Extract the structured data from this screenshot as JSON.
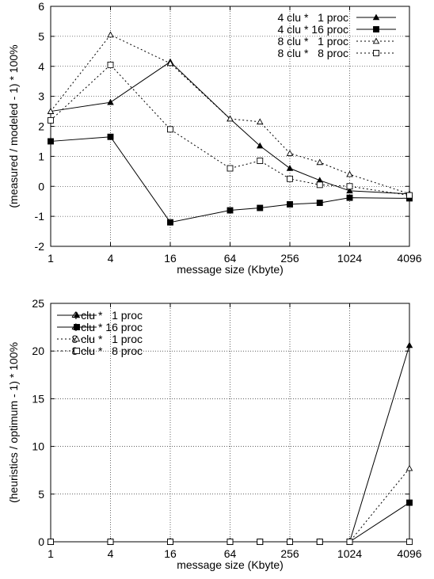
{
  "chart_data": [
    {
      "type": "line",
      "title": "",
      "xlabel": "message size (Kbyte)",
      "ylabel": "(measured / modeled - 1) * 100%",
      "xscale": "log2",
      "xlim": [
        1,
        4096
      ],
      "ylim": [
        -2,
        6
      ],
      "x_ticks": [
        "1",
        "4",
        "16",
        "64",
        "256",
        "1024",
        "4096"
      ],
      "y_ticks": [
        "-2",
        "-1",
        "0",
        "1",
        "2",
        "3",
        "4",
        "5",
        "6"
      ],
      "grid": true,
      "legend": "top-right",
      "x": [
        1,
        4,
        16,
        64,
        128,
        256,
        512,
        1024,
        4096
      ],
      "series": [
        {
          "name": "4 clu *   1 proc",
          "line": "solid",
          "marker": "filled-triangle",
          "values": [
            2.5,
            2.8,
            4.15,
            2.25,
            1.35,
            0.6,
            0.2,
            -0.15,
            -0.25
          ]
        },
        {
          "name": "4 clu * 16 proc",
          "line": "solid",
          "marker": "filled-square",
          "values": [
            1.5,
            1.65,
            -1.2,
            -0.8,
            -0.72,
            -0.6,
            -0.55,
            -0.38,
            -0.4
          ]
        },
        {
          "name": "8 clu *   1 proc",
          "line": "dotted",
          "marker": "open-triangle",
          "values": [
            2.5,
            5.05,
            4.1,
            2.25,
            2.15,
            1.1,
            0.8,
            0.4,
            -0.25
          ]
        },
        {
          "name": "8 clu *   8 proc",
          "line": "dotted",
          "marker": "open-square",
          "values": [
            2.2,
            4.05,
            1.9,
            0.6,
            0.85,
            0.25,
            0.05,
            0.0,
            -0.3
          ]
        }
      ]
    },
    {
      "type": "line",
      "title": "",
      "xlabel": "message size (Kbyte)",
      "ylabel": "(heuristics / optimum - 1) * 100%",
      "xscale": "log2",
      "xlim": [
        1,
        4096
      ],
      "ylim": [
        0,
        25
      ],
      "x_ticks": [
        "1",
        "4",
        "16",
        "64",
        "256",
        "1024",
        "4096"
      ],
      "y_ticks": [
        "0",
        "5",
        "10",
        "15",
        "20",
        "25"
      ],
      "grid": true,
      "legend": "top-left",
      "x": [
        1,
        4,
        16,
        64,
        128,
        256,
        512,
        1024,
        4096
      ],
      "series": [
        {
          "name": "4 clu *   1 proc",
          "line": "solid",
          "marker": "filled-triangle",
          "values": [
            0,
            0,
            0,
            0,
            0,
            0,
            0,
            0,
            20.6
          ]
        },
        {
          "name": "4 clu * 16 proc",
          "line": "solid",
          "marker": "filled-square",
          "values": [
            0,
            0,
            0,
            0,
            0,
            0,
            0,
            0,
            4.1
          ]
        },
        {
          "name": "8 clu *   1 proc",
          "line": "dotted",
          "marker": "open-triangle",
          "values": [
            0,
            0,
            0,
            0,
            0,
            0,
            0,
            0,
            7.7
          ]
        },
        {
          "name": "8 clu *   8 proc",
          "line": "dotted",
          "marker": "open-square",
          "values": [
            0,
            0,
            0,
            0,
            0,
            0,
            0,
            0,
            0
          ]
        }
      ]
    }
  ]
}
